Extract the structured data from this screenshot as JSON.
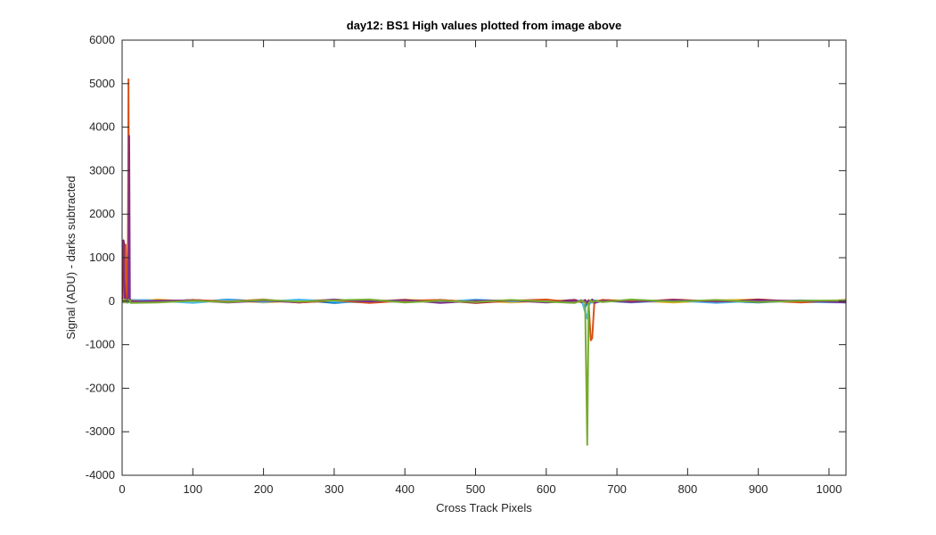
{
  "chart_data": {
    "type": "line",
    "title": "day12: BS1  High values plotted from image above",
    "xlabel": "Cross Track Pixels",
    "ylabel": "Signal (ADU) - darks subtracted",
    "xlim": [
      0,
      1024
    ],
    "ylim": [
      -4000,
      6000
    ],
    "xticks": [
      0,
      100,
      200,
      300,
      400,
      500,
      600,
      700,
      800,
      900,
      1000
    ],
    "yticks": [
      -4000,
      -3000,
      -2000,
      -1000,
      0,
      1000,
      2000,
      3000,
      4000,
      5000,
      6000
    ],
    "x": [
      0,
      2,
      3,
      5,
      7,
      8,
      9,
      10,
      11,
      12,
      50,
      100,
      150,
      200,
      250,
      300,
      350,
      400,
      450,
      500,
      550,
      600,
      640,
      650,
      655,
      658,
      660,
      663,
      665,
      668,
      680,
      720,
      780,
      840,
      900,
      960,
      1024
    ],
    "series": [
      {
        "color": "#0072BD",
        "values": [
          10,
          -20,
          30,
          -10,
          20,
          -30,
          10,
          0,
          -20,
          30,
          20,
          -30,
          40,
          -10,
          30,
          -40,
          10,
          -20,
          30,
          -30,
          20,
          -10,
          30,
          -20,
          -150,
          -40,
          -20,
          10,
          -30,
          20,
          -10,
          30,
          -20,
          10,
          -30,
          20,
          -10
        ]
      },
      {
        "color": "#EDB120",
        "values": [
          -10,
          20,
          -30,
          10,
          -20,
          30,
          -10,
          20,
          30,
          -20,
          40,
          -10,
          20,
          -30,
          10,
          30,
          -20,
          40,
          -10,
          20,
          -30,
          10,
          20,
          -30,
          10,
          -20,
          30,
          -40,
          20,
          -10,
          30,
          10,
          -30,
          20,
          40,
          -10,
          -20
        ]
      },
      {
        "color": "#A2142F",
        "values": [
          40,
          1400,
          1300,
          20,
          -30,
          10,
          -20,
          30,
          -10,
          20,
          -20,
          30,
          -10,
          20,
          -30,
          10,
          30,
          -10,
          20,
          -40,
          10,
          -20,
          30,
          -10,
          20,
          -20,
          -30,
          10,
          40,
          -20,
          30,
          -10,
          20,
          -30,
          40,
          -20,
          10
        ]
      },
      {
        "color": "#4DBEEE",
        "values": [
          20,
          -30,
          10,
          40,
          -20,
          10,
          -30,
          20,
          -10,
          30,
          10,
          -40,
          30,
          -20,
          40,
          -10,
          -30,
          20,
          -20,
          40,
          -10,
          30,
          -20,
          30,
          -250,
          -400,
          -100,
          -30,
          20,
          -40,
          10,
          -30,
          20,
          -40,
          10,
          -20,
          -30
        ]
      },
      {
        "color": "#D95319",
        "values": [
          30,
          -10,
          20,
          1300,
          40,
          100,
          5100,
          40,
          -20,
          10,
          -20,
          30,
          -10,
          40,
          -30,
          20,
          -40,
          10,
          30,
          -20,
          10,
          40,
          -30,
          20,
          -40,
          -30,
          -60,
          -900,
          -850,
          -40,
          30,
          -20,
          40,
          -10,
          20,
          -30,
          30
        ]
      },
      {
        "color": "#7E2F8E",
        "values": [
          1400,
          1350,
          60,
          -20,
          30,
          40,
          200,
          3800,
          50,
          -10,
          10,
          20,
          -30,
          10,
          -20,
          40,
          -10,
          30,
          -40,
          10,
          20,
          -30,
          10,
          -20,
          30,
          -30,
          20,
          -10,
          30,
          -40,
          10,
          -20,
          30,
          -10,
          20,
          10,
          -30
        ]
      },
      {
        "color": "#77AC30",
        "values": [
          -20,
          10,
          40,
          -30,
          10,
          -20,
          30,
          -10,
          20,
          -40,
          -30,
          10,
          -20,
          30,
          -10,
          20,
          40,
          -30,
          10,
          -20,
          30,
          -10,
          -40,
          10,
          -30,
          -3300,
          -40,
          20,
          -30,
          10,
          -20,
          40,
          -10,
          30,
          -20,
          10,
          20
        ]
      }
    ]
  }
}
